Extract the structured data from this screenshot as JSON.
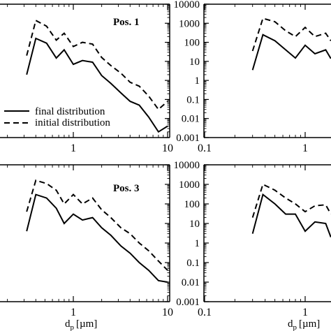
{
  "chart_data": [
    {
      "type": "line",
      "label": "Pos. 1",
      "x_scale": "log",
      "y_scale": "log",
      "xlim": [
        0.1,
        10
      ],
      "ylim": [
        0.001,
        10000
      ],
      "x_ticks": [],
      "x_tick_labels": [
        "1",
        "10"
      ],
      "y_tick_labels": [],
      "xlabel": "",
      "legend": {
        "position": "bottom-left",
        "entries": [
          "final distribution",
          "initial distribution"
        ]
      },
      "series": [
        {
          "name": "final distribution",
          "style": "solid",
          "x": [
            0.32,
            0.4,
            0.52,
            0.66,
            0.8,
            1.0,
            1.25,
            1.6,
            2.0,
            2.5,
            3.2,
            4.0,
            5.0,
            6.3,
            8.0,
            10.0
          ],
          "y": [
            2.0,
            160,
            90,
            15,
            40,
            7,
            11,
            9,
            1.8,
            0.7,
            0.22,
            0.08,
            0.05,
            0.012,
            0.002,
            0.004
          ]
        },
        {
          "name": "initial distribution",
          "style": "dashed",
          "x": [
            0.32,
            0.4,
            0.52,
            0.66,
            0.8,
            1.0,
            1.25,
            1.6,
            2.0,
            2.5,
            3.2,
            4.0,
            5.0,
            6.3,
            8.0,
            10.0
          ],
          "y": [
            20,
            1400,
            700,
            130,
            300,
            60,
            100,
            80,
            16,
            6,
            2.4,
            0.8,
            0.5,
            0.15,
            0.03,
            0.08
          ]
        }
      ]
    },
    {
      "type": "line",
      "label": "",
      "x_scale": "log",
      "y_scale": "log",
      "xlim": [
        0.1,
        1.8
      ],
      "ylim": [
        0.001,
        10000
      ],
      "x_tick_labels": [
        "0.1",
        "1"
      ],
      "y_tick_labels": [
        "10000",
        "1000",
        "100",
        "10",
        "1",
        "0.1",
        "0.01",
        "0.001"
      ],
      "xlabel": "",
      "series": [
        {
          "name": "final distribution",
          "style": "solid",
          "x": [
            0.3,
            0.38,
            0.5,
            0.64,
            0.8,
            1.0,
            1.25,
            1.6,
            1.8
          ],
          "y": [
            3.5,
            250,
            120,
            40,
            15,
            70,
            25,
            40,
            14
          ]
        },
        {
          "name": "initial distribution",
          "style": "dashed",
          "x": [
            0.3,
            0.38,
            0.5,
            0.64,
            0.8,
            1.0,
            1.25,
            1.6,
            1.8
          ],
          "y": [
            35,
            1800,
            1200,
            400,
            200,
            600,
            200,
            300,
            120
          ]
        }
      ]
    },
    {
      "type": "line",
      "label": "Pos. 3",
      "x_scale": "log",
      "y_scale": "log",
      "xlim": [
        0.1,
        10
      ],
      "ylim": [
        0.001,
        10000
      ],
      "x_tick_labels": [
        "1",
        "10"
      ],
      "y_tick_labels": [],
      "xlabel": "d_p [µm]",
      "series": [
        {
          "name": "final distribution",
          "style": "solid",
          "x": [
            0.32,
            0.4,
            0.52,
            0.66,
            0.8,
            1.0,
            1.25,
            1.6,
            2.0,
            2.5,
            3.2,
            4.0,
            5.0,
            6.3,
            8.0,
            10.0
          ],
          "y": [
            4,
            300,
            200,
            60,
            10,
            30,
            15,
            20,
            6,
            2.5,
            0.7,
            0.3,
            0.1,
            0.04,
            0.012,
            0.01
          ]
        },
        {
          "name": "initial distribution",
          "style": "dashed",
          "x": [
            0.32,
            0.4,
            0.52,
            0.66,
            0.8,
            1.0,
            1.25,
            1.6,
            2.0,
            2.5,
            3.2,
            4.0,
            5.0,
            6.3,
            8.0,
            10.0
          ],
          "y": [
            40,
            1600,
            1100,
            500,
            100,
            300,
            100,
            200,
            50,
            20,
            6,
            3,
            1,
            0.4,
            0.12,
            0.04
          ]
        }
      ]
    },
    {
      "type": "line",
      "label": "",
      "x_scale": "log",
      "y_scale": "log",
      "xlim": [
        0.1,
        1.8
      ],
      "ylim": [
        0.001,
        10000
      ],
      "x_tick_labels": [
        "0.1",
        "1"
      ],
      "y_tick_labels": [
        "10000",
        "1000",
        "100",
        "10",
        "1",
        "0.1",
        "0.01",
        "0.001"
      ],
      "xlabel": "d_p [µm]",
      "series": [
        {
          "name": "final distribution",
          "style": "solid",
          "x": [
            0.3,
            0.38,
            0.5,
            0.64,
            0.8,
            1.0,
            1.25,
            1.6,
            1.8
          ],
          "y": [
            3,
            300,
            100,
            30,
            30,
            4,
            12,
            10,
            2
          ]
        },
        {
          "name": "initial distribution",
          "style": "dashed",
          "x": [
            0.3,
            0.38,
            0.5,
            0.64,
            0.8,
            1.0,
            1.25,
            1.6,
            1.8
          ],
          "y": [
            20,
            1000,
            500,
            200,
            100,
            40,
            80,
            90,
            30
          ]
        }
      ]
    }
  ],
  "labels": {
    "pos1": "Pos. 1",
    "pos3": "Pos. 3",
    "legend_final": "final distribution",
    "legend_initial": "initial distribution",
    "xlabel_main": "d",
    "xlabel_sub": "p",
    "xlabel_unit": "[µm]"
  }
}
